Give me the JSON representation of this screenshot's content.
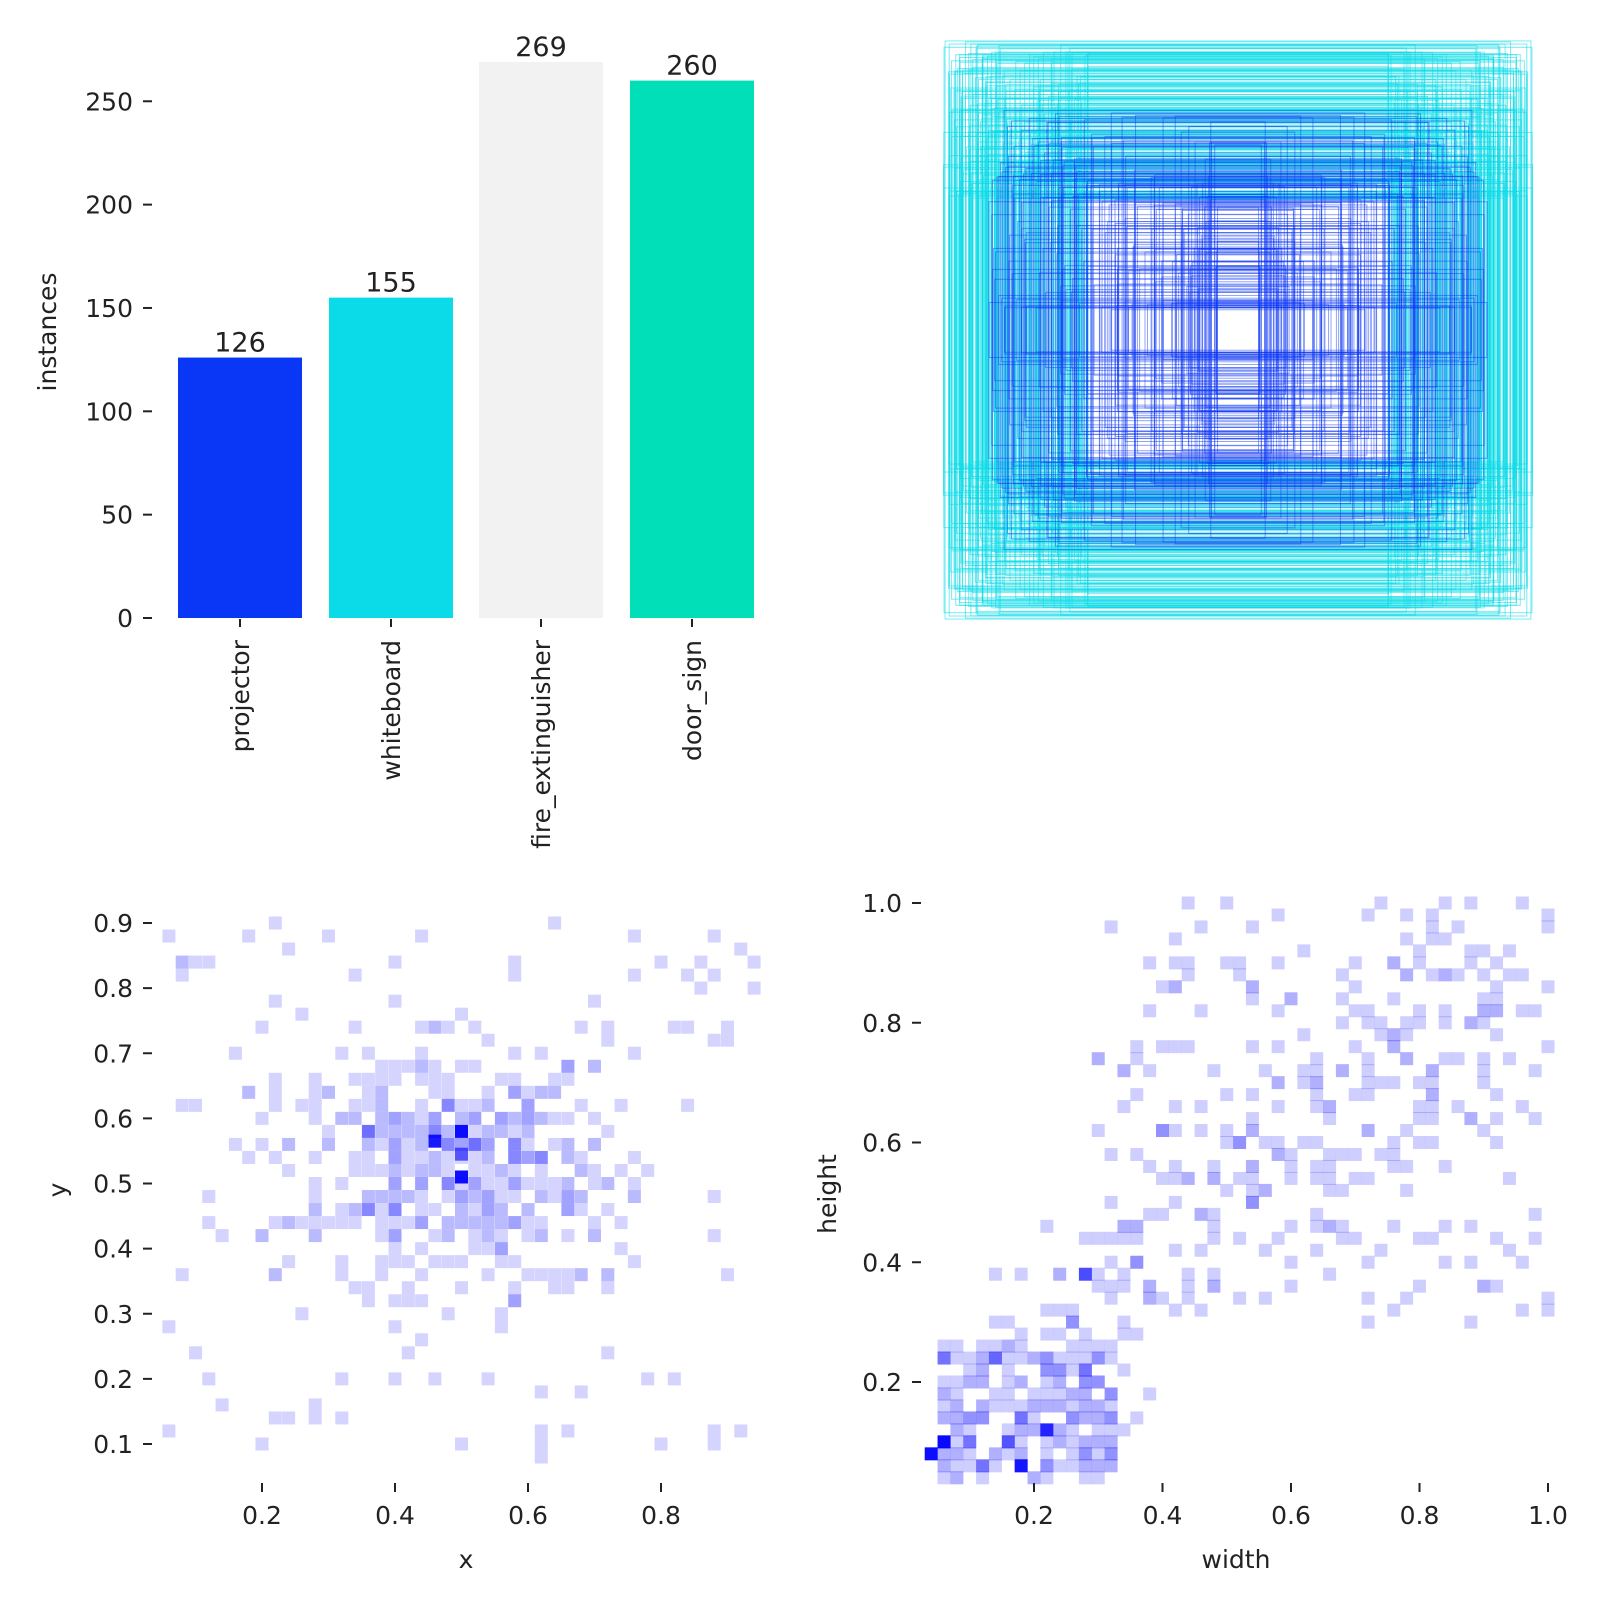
{
  "colors": {
    "projector": "#0a36f5",
    "whiteboard": "#0bdbe8",
    "fire_extinguisher": "#f2f2f2",
    "door_sign": "#00dfb8",
    "heat": "#0000ff",
    "boxes_dark": "#0a36f5",
    "boxes_light": "#0bdbe8"
  },
  "chart_data": [
    {
      "type": "bar",
      "ylabel": "instances",
      "xlabel": "",
      "categories": [
        "projector",
        "whiteboard",
        "fire_extinguisher",
        "door_sign"
      ],
      "values": [
        126,
        155,
        269,
        260
      ],
      "value_labels": [
        "126",
        "155",
        "269",
        "260"
      ],
      "ylim": [
        0,
        269
      ],
      "yticks": [
        0,
        50,
        100,
        150,
        200,
        250
      ],
      "ytick_labels": [
        "0",
        "50",
        "100",
        "150",
        "200",
        "250"
      ],
      "grid": false
    },
    {
      "type": "boxes",
      "description_visible": false,
      "grid": false
    },
    {
      "type": "heatmap",
      "xlabel": "x",
      "ylabel": "y",
      "xlim": [
        0.04,
        0.96
      ],
      "ylim": [
        0.04,
        0.94
      ],
      "xticks": [
        0.2,
        0.4,
        0.6,
        0.8
      ],
      "xtick_labels": [
        "0.2",
        "0.4",
        "0.6",
        "0.8"
      ],
      "yticks": [
        0.1,
        0.2,
        0.3,
        0.4,
        0.5,
        0.6,
        0.7,
        0.8,
        0.9
      ],
      "ytick_labels": [
        "0.1",
        "0.2",
        "0.3",
        "0.4",
        "0.5",
        "0.6",
        "0.7",
        "0.8",
        "0.9"
      ],
      "grid": false
    },
    {
      "type": "heatmap",
      "xlabel": "width",
      "ylabel": "height",
      "xlim": [
        0.02,
        1.0
      ],
      "ylim": [
        0.02,
        1.0
      ],
      "xticks": [
        0.2,
        0.4,
        0.6,
        0.8,
        1.0
      ],
      "xtick_labels": [
        "0.2",
        "0.4",
        "0.6",
        "0.8",
        "1.0"
      ],
      "yticks": [
        0.2,
        0.4,
        0.6,
        0.8,
        1.0
      ],
      "ytick_labels": [
        "0.2",
        "0.4",
        "0.6",
        "0.8",
        "1.0"
      ],
      "grid": false
    }
  ]
}
